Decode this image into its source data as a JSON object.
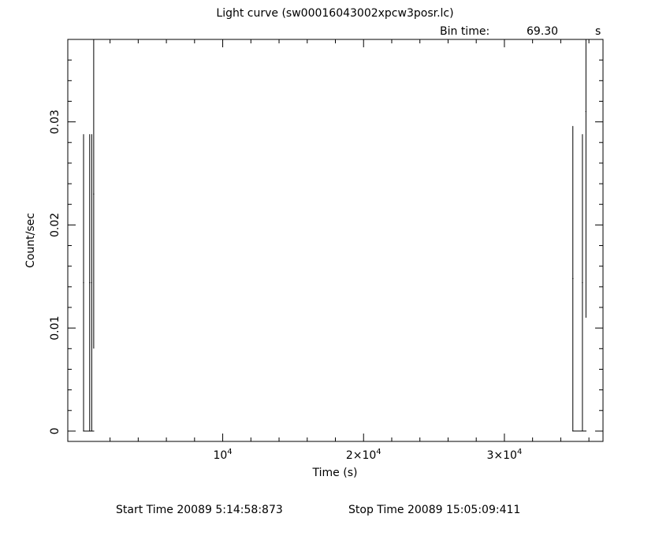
{
  "chart_data": {
    "type": "line",
    "title": "Light curve (sw00016043002xpcw3posr.lc)",
    "bin_time_label": "Bin time:",
    "bin_time_value": "69.30",
    "bin_time_unit": "s",
    "xlabel": "Time (s)",
    "ylabel": "Count/sec",
    "xlim": [
      -1000,
      37000
    ],
    "ylim": [
      -0.001,
      0.038
    ],
    "x_ticks": [
      {
        "value": 10000,
        "mantissa": "",
        "exp": "4"
      },
      {
        "value": 20000,
        "mantissa": "2×",
        "exp": "4"
      },
      {
        "value": 30000,
        "mantissa": "3×",
        "exp": "4"
      }
    ],
    "x_tick_base": "10",
    "y_ticks": [
      {
        "value": 0,
        "label": "0"
      },
      {
        "value": 0.01,
        "label": "0.01"
      },
      {
        "value": 0.02,
        "label": "0.02"
      },
      {
        "value": 0.03,
        "label": "0.03"
      }
    ],
    "series": [
      {
        "name": "light curve",
        "points": [
          {
            "t": 120,
            "rate": 0.0144,
            "err": 0.0144
          },
          {
            "t": 555,
            "rate": 0.0144,
            "err": 0.0144
          },
          {
            "t": 700,
            "rate": 0.0144,
            "err": 0.0144
          },
          {
            "t": 840,
            "rate": 0.023,
            "err": 0.015
          },
          {
            "t": 34860,
            "rate": 0.0148,
            "err": 0.0148
          },
          {
            "t": 35540,
            "rate": 0.0144,
            "err": 0.0144
          },
          {
            "t": 35790,
            "rate": 0.031,
            "err": 0.02
          }
        ]
      }
    ],
    "start_time_label": "Start Time 20089  5:14:58:873",
    "stop_time_label": "Stop Time 20089 15:05:09:411"
  }
}
